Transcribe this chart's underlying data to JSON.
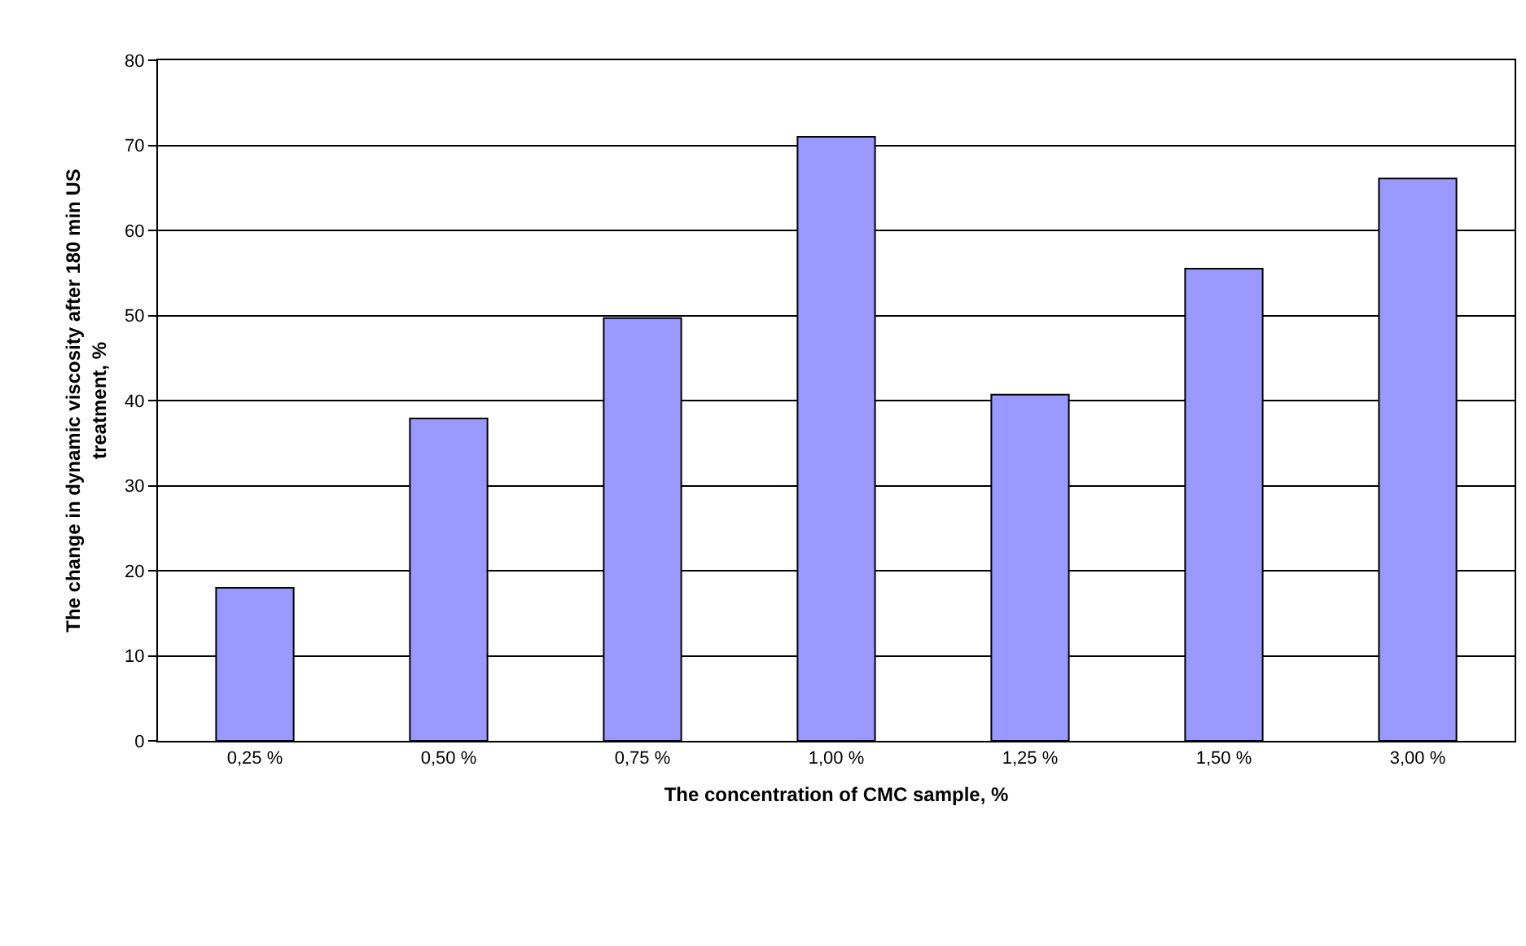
{
  "chart_data": {
    "type": "bar",
    "xlabel": "The concentration of CMC sample, %",
    "ylabel": "The change in dynamic viscosity after 180 min US treatment, %",
    "categories": [
      "0,25 %",
      "0,50 %",
      "0,75 %",
      "1,00 %",
      "1,25 %",
      "1,50 %",
      "3,00 %"
    ],
    "values": [
      18.0,
      37.9,
      49.7,
      71.0,
      40.7,
      55.5,
      66.1
    ],
    "color": "#9999ff",
    "ylim": [
      0,
      80
    ],
    "yticks": [
      0,
      10,
      20,
      30,
      40,
      50,
      60,
      70,
      80
    ],
    "grid": "y",
    "legend": false
  }
}
